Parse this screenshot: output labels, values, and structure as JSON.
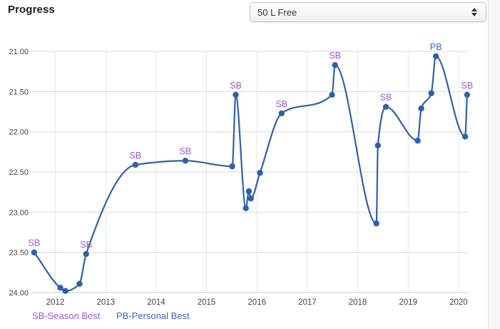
{
  "header": {
    "title": "Progress",
    "event_select": {
      "value": "50 L Free"
    }
  },
  "chart_data": {
    "type": "line",
    "title": "Progress",
    "xlabel": "",
    "ylabel": "",
    "y_inverted": true,
    "grid": true,
    "xlim": [
      2011.525,
      2020.2
    ],
    "ylim": [
      21.0,
      24.0
    ],
    "x_ticks": [
      2012,
      2013,
      2014,
      2015,
      2016,
      2017,
      2018,
      2019,
      2020
    ],
    "y_ticks": [
      "21.00",
      "21.50",
      "22.00",
      "22.50",
      "23.00",
      "23.50",
      "24.00"
    ],
    "legend": {
      "sb": "SB-Season Best",
      "pb": "PB-Personal Best",
      "position": "bottom-left"
    },
    "colors": {
      "line": "#2e61a8",
      "sb": "#9b59d6",
      "pb": "#3c66cc",
      "grid": "#d9d9d9",
      "vgrid": "#e4e4e4",
      "axis_line": "#c8c8c8",
      "tick_text": "#444444"
    },
    "series": [
      {
        "name": "50 L Free",
        "color": "#2e61a8",
        "points": [
          {
            "x": 2011.58,
            "y": 23.5,
            "label": "SB"
          },
          {
            "x": 2012.1,
            "y": 23.94
          },
          {
            "x": 2012.2,
            "y": 23.98
          },
          {
            "x": 2012.48,
            "y": 23.89
          },
          {
            "x": 2012.61,
            "y": 23.52,
            "label": "SB"
          },
          {
            "x": 2013.59,
            "y": 22.41,
            "label": "SB"
          },
          {
            "x": 2014.58,
            "y": 22.36,
            "label": "SB"
          },
          {
            "x": 2015.51,
            "y": 22.43
          },
          {
            "x": 2015.58,
            "y": 21.54,
            "label": "SB"
          },
          {
            "x": 2015.78,
            "y": 22.95
          },
          {
            "x": 2015.84,
            "y": 22.74
          },
          {
            "x": 2015.88,
            "y": 22.83
          },
          {
            "x": 2016.06,
            "y": 22.51
          },
          {
            "x": 2016.49,
            "y": 21.77,
            "label": "SB"
          },
          {
            "x": 2017.49,
            "y": 21.54
          },
          {
            "x": 2017.55,
            "y": 21.17,
            "label": "SB"
          },
          {
            "x": 2018.37,
            "y": 23.14
          },
          {
            "x": 2018.4,
            "y": 22.17
          },
          {
            "x": 2018.56,
            "y": 21.69,
            "label": "SB"
          },
          {
            "x": 2019.19,
            "y": 22.11
          },
          {
            "x": 2019.26,
            "y": 21.71
          },
          {
            "x": 2019.46,
            "y": 21.52
          },
          {
            "x": 2019.55,
            "y": 21.06,
            "label": "PB"
          },
          {
            "x": 2020.13,
            "y": 22.06
          },
          {
            "x": 2020.17,
            "y": 21.54,
            "label": "SB"
          }
        ]
      }
    ]
  }
}
